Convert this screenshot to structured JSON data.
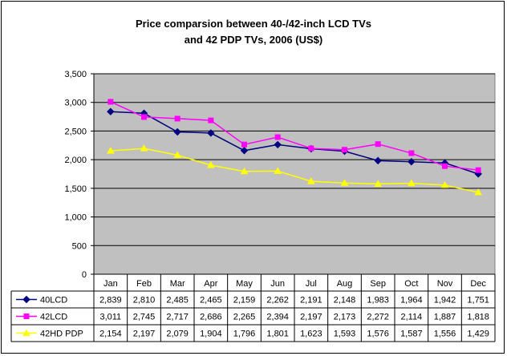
{
  "chart_data": {
    "type": "line",
    "title_lines": [
      "Price comparsion between 40-/42-inch LCD TVs",
      "and 42 PDP TVs, 2006 (US$)"
    ],
    "categories": [
      "Jan",
      "Feb",
      "Mar",
      "Apr",
      "May",
      "Jun",
      "Jul",
      "Aug",
      "Sep",
      "Oct",
      "Nov",
      "Dec"
    ],
    "ylim": [
      0,
      3500
    ],
    "yticks": [
      0,
      500,
      1000,
      1500,
      2000,
      2500,
      3000,
      3500
    ],
    "ytick_labels": [
      "0",
      "500",
      "1,000",
      "1,500",
      "2,000",
      "2,500",
      "3,000",
      "3,500"
    ],
    "grid": true,
    "legend": "data-table-left",
    "series": [
      {
        "name": "40LCD",
        "color": "#000080",
        "marker": "diamond",
        "values": [
          2839,
          2810,
          2485,
          2465,
          2159,
          2262,
          2191,
          2148,
          1983,
          1964,
          1942,
          1751
        ],
        "labels": [
          "2,839",
          "2,810",
          "2,485",
          "2,465",
          "2,159",
          "2,262",
          "2,191",
          "2,148",
          "1,983",
          "1,964",
          "1,942",
          "1,751"
        ]
      },
      {
        "name": "42LCD",
        "color": "#ff00ff",
        "marker": "square",
        "values": [
          3011,
          2745,
          2717,
          2686,
          2265,
          2394,
          2197,
          2173,
          2272,
          2114,
          1887,
          1818
        ],
        "labels": [
          "3,011",
          "2,745",
          "2,717",
          "2,686",
          "2,265",
          "2,394",
          "2,197",
          "2,173",
          "2,272",
          "2,114",
          "1,887",
          "1,818"
        ]
      },
      {
        "name": "42HD PDP",
        "color": "#ffff00",
        "marker": "triangle",
        "values": [
          2154,
          2197,
          2079,
          1904,
          1796,
          1801,
          1623,
          1593,
          1576,
          1587,
          1556,
          1429
        ],
        "labels": [
          "2,154",
          "2,197",
          "2,079",
          "1,904",
          "1,796",
          "1,801",
          "1,623",
          "1,593",
          "1,576",
          "1,587",
          "1,556",
          "1,429"
        ]
      }
    ],
    "plot_background": "#c0c0c0"
  }
}
